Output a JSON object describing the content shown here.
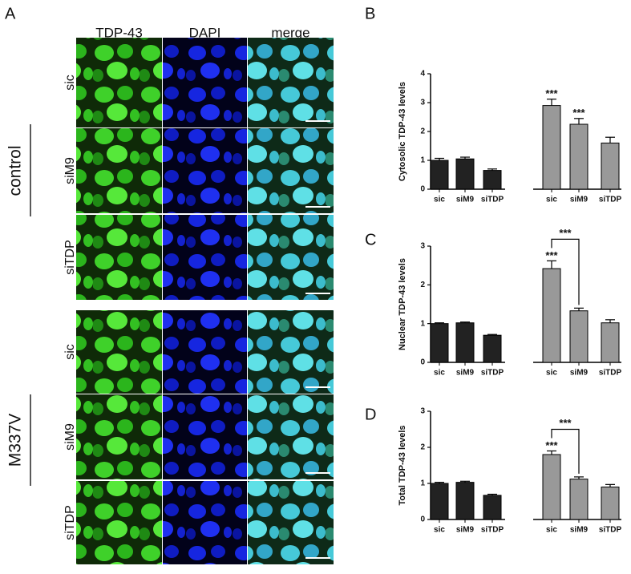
{
  "panel_a": {
    "label": "A",
    "columns": [
      "TDP-43",
      "DAPI",
      "merge"
    ],
    "groups": [
      {
        "name": "control",
        "rows": [
          "sic",
          "siM9",
          "siTDP"
        ]
      },
      {
        "name": "M337V",
        "rows": [
          "sic",
          "siM9",
          "siTDP"
        ]
      }
    ]
  },
  "chart_data": [
    {
      "type": "bar",
      "label": "B",
      "ylabel": "Cytosolic TDP-43 levels",
      "categories": [
        "sic",
        "siM9",
        "siTDP",
        "sic",
        "siM9",
        "siTDP"
      ],
      "values": [
        1.0,
        1.05,
        0.65,
        2.9,
        2.25,
        1.6
      ],
      "errors": [
        0.07,
        0.06,
        0.05,
        0.22,
        0.2,
        0.2
      ],
      "colors": [
        "#222222",
        "#222222",
        "#222222",
        "#999999",
        "#999999",
        "#999999"
      ],
      "significance": [
        null,
        null,
        null,
        "***",
        "***",
        null
      ],
      "ylim": [
        0,
        4
      ],
      "yticks": [
        0,
        1,
        2,
        3,
        4
      ]
    },
    {
      "type": "bar",
      "label": "C",
      "ylabel": "Nuclear TDP-43 levels",
      "categories": [
        "sic",
        "siM9",
        "siTDP",
        "sic",
        "siM9",
        "siTDP"
      ],
      "values": [
        1.0,
        1.02,
        0.7,
        2.42,
        1.33,
        1.02
      ],
      "errors": [
        0.02,
        0.02,
        0.02,
        0.2,
        0.07,
        0.08
      ],
      "colors": [
        "#222222",
        "#222222",
        "#222222",
        "#999999",
        "#999999",
        "#999999"
      ],
      "significance": [
        null,
        null,
        null,
        "***",
        null,
        null
      ],
      "brackets": [
        {
          "from": 3,
          "to": 4,
          "label": "***"
        }
      ],
      "ylim": [
        0,
        3
      ],
      "yticks": [
        0,
        1,
        2,
        3
      ]
    },
    {
      "type": "bar",
      "label": "D",
      "ylabel": "Total TDP-43 levels",
      "categories": [
        "sic",
        "siM9",
        "siTDP",
        "sic",
        "siM9",
        "siTDP"
      ],
      "values": [
        1.0,
        1.03,
        0.67,
        1.8,
        1.12,
        0.9
      ],
      "errors": [
        0.03,
        0.03,
        0.03,
        0.1,
        0.06,
        0.07
      ],
      "colors": [
        "#222222",
        "#222222",
        "#222222",
        "#999999",
        "#999999",
        "#999999"
      ],
      "significance": [
        null,
        null,
        null,
        "***",
        null,
        null
      ],
      "brackets": [
        {
          "from": 3,
          "to": 4,
          "label": "***"
        }
      ],
      "ylim": [
        0,
        3
      ],
      "yticks": [
        0,
        1,
        2,
        3
      ]
    }
  ]
}
